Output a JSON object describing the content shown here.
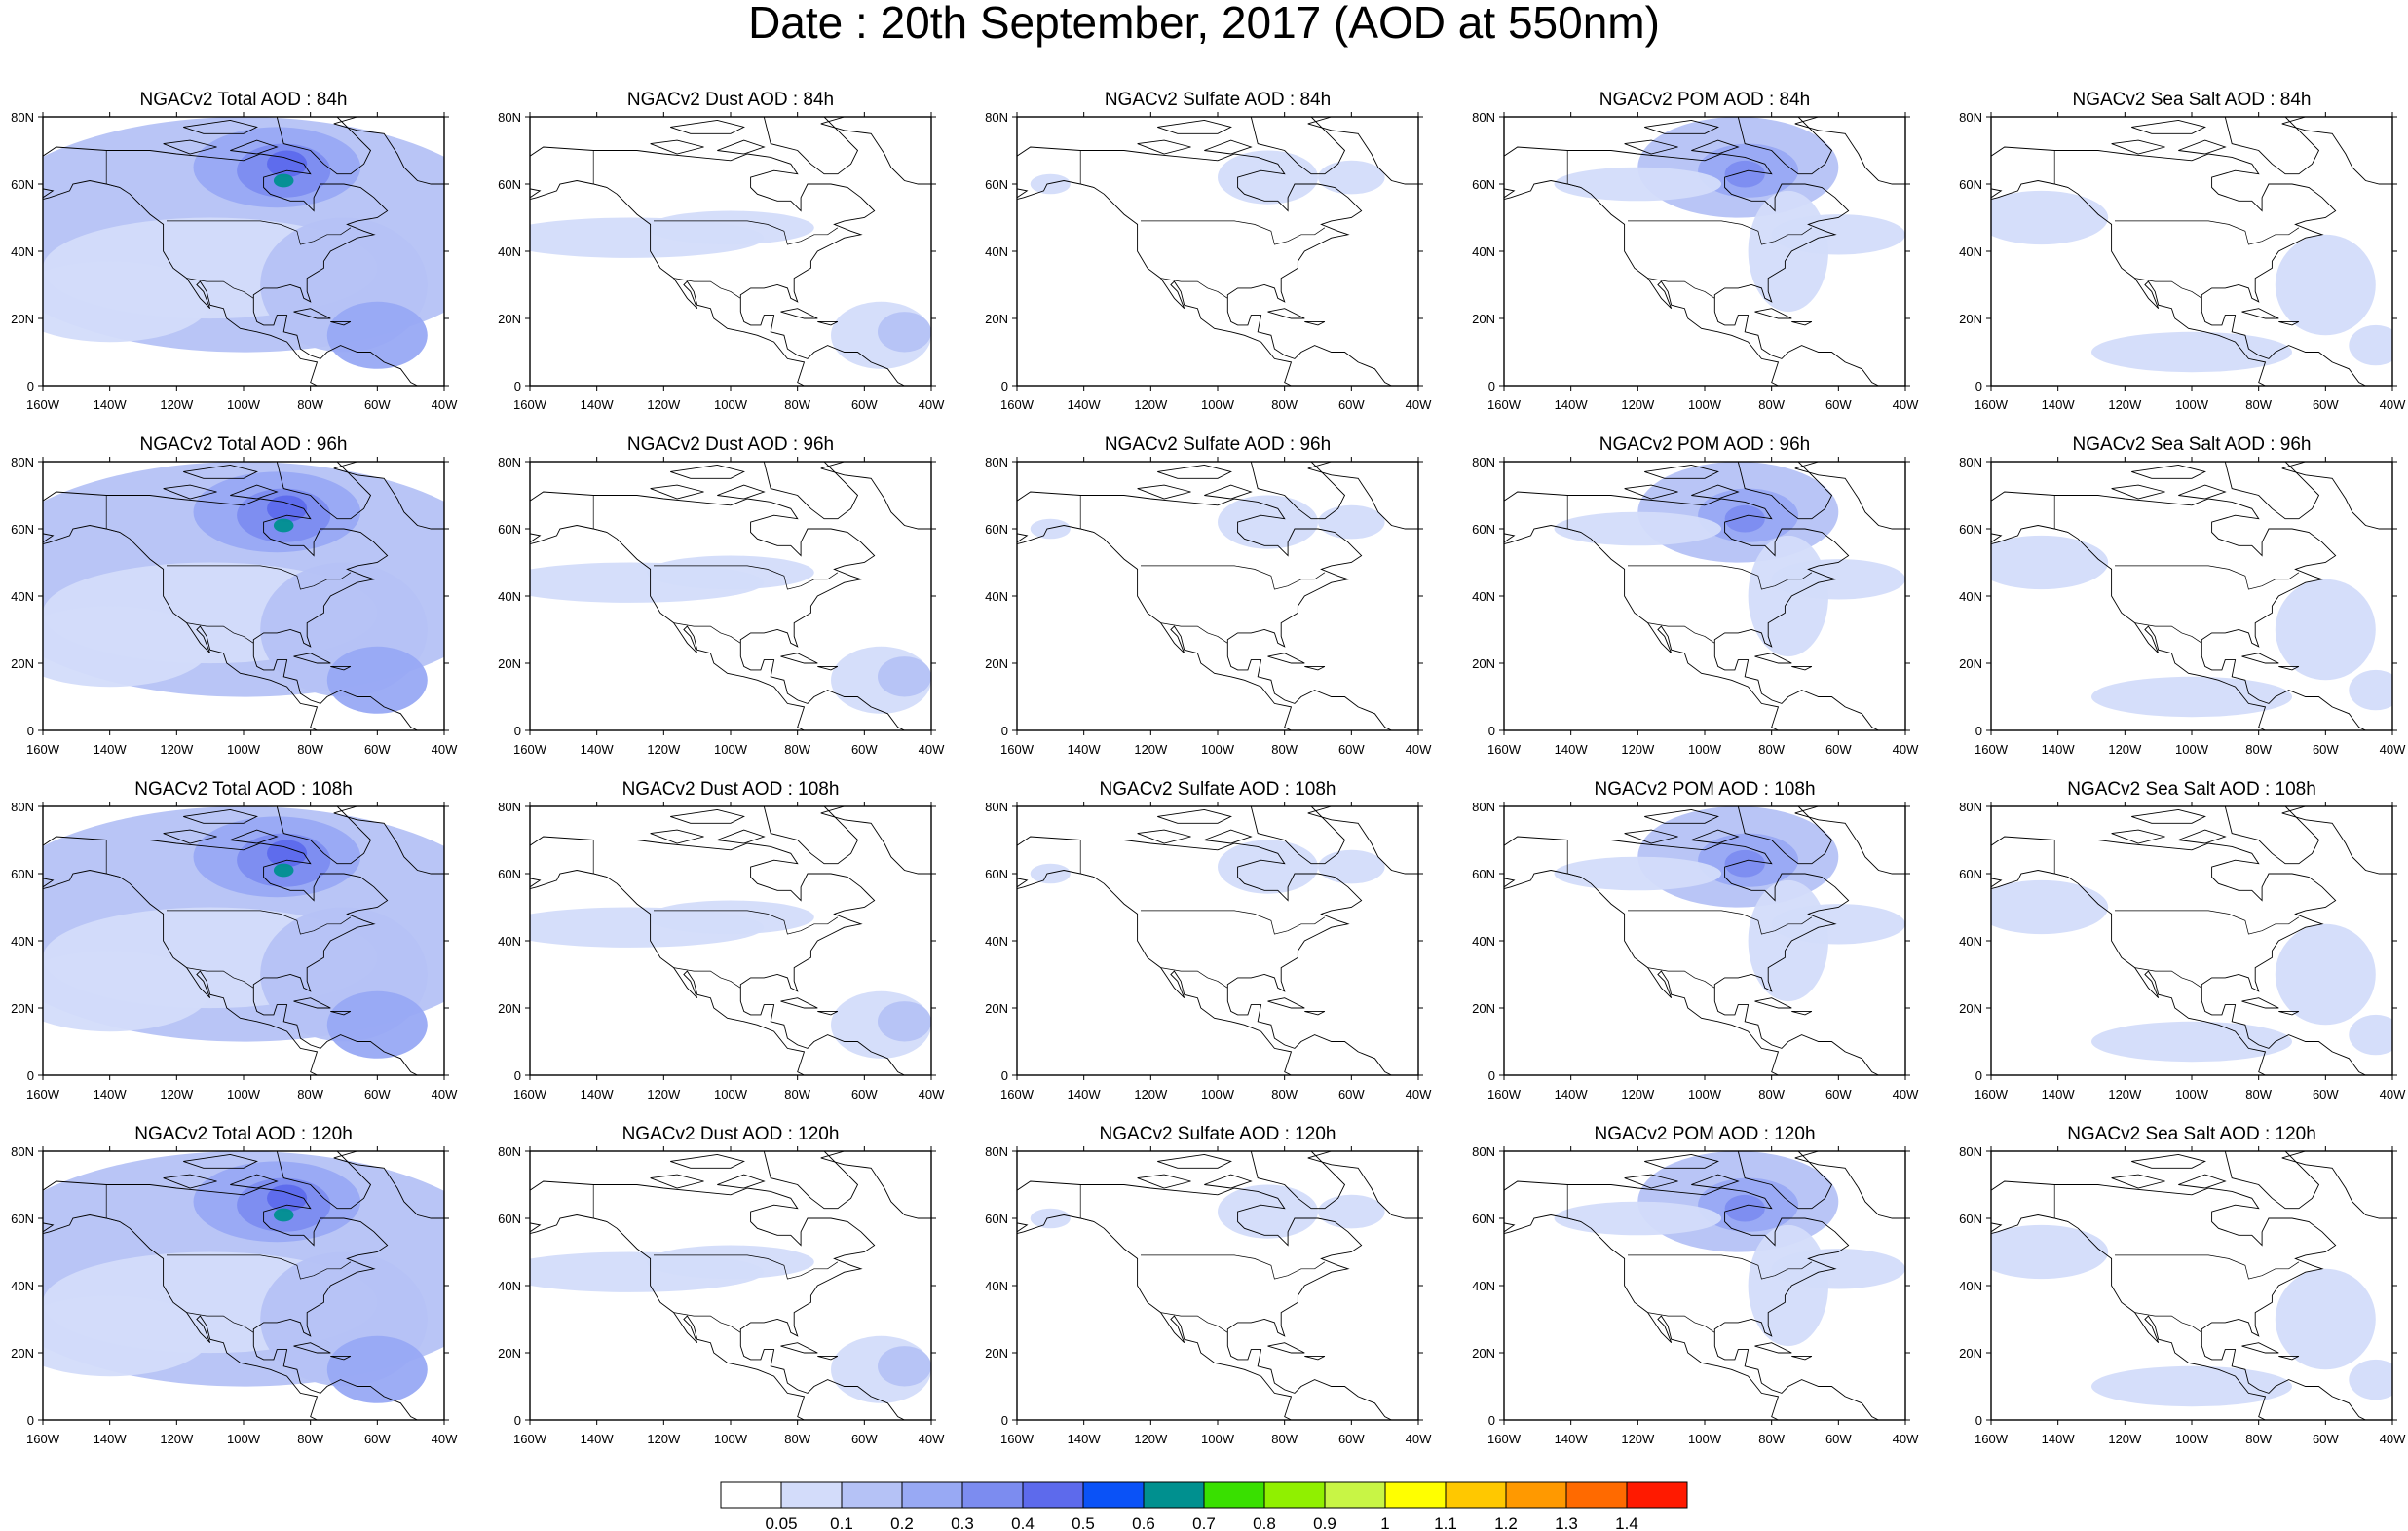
{
  "title": "Date : 20th September, 2017 (AOD at 550nm)",
  "axes": {
    "lon_labels": [
      "160W",
      "140W",
      "120W",
      "100W",
      "80W",
      "60W",
      "40W"
    ],
    "lat_labels": [
      "0",
      "20N",
      "40N",
      "60N",
      "80N"
    ],
    "lon_range": [
      -160,
      -40
    ],
    "lat_range": [
      0,
      80
    ]
  },
  "panels": [
    {
      "title": "NGACv2 Total AOD : 84h",
      "species": "total",
      "hour": 84
    },
    {
      "title": "NGACv2 Dust AOD : 84h",
      "species": "dust",
      "hour": 84
    },
    {
      "title": "NGACv2 Sulfate AOD : 84h",
      "species": "sulfate",
      "hour": 84
    },
    {
      "title": "NGACv2 POM AOD : 84h",
      "species": "pom",
      "hour": 84
    },
    {
      "title": "NGACv2 Sea Salt AOD : 84h",
      "species": "seasalt",
      "hour": 84
    },
    {
      "title": "NGACv2 Total AOD : 96h",
      "species": "total",
      "hour": 96
    },
    {
      "title": "NGACv2 Dust AOD : 96h",
      "species": "dust",
      "hour": 96
    },
    {
      "title": "NGACv2 Sulfate AOD : 96h",
      "species": "sulfate",
      "hour": 96
    },
    {
      "title": "NGACv2 POM AOD : 96h",
      "species": "pom",
      "hour": 96
    },
    {
      "title": "NGACv2 Sea Salt AOD : 96h",
      "species": "seasalt",
      "hour": 96
    },
    {
      "title": "NGACv2 Total AOD : 108h",
      "species": "total",
      "hour": 108
    },
    {
      "title": "NGACv2 Dust AOD : 108h",
      "species": "dust",
      "hour": 108
    },
    {
      "title": "NGACv2 Sulfate AOD : 108h",
      "species": "sulfate",
      "hour": 108
    },
    {
      "title": "NGACv2 POM AOD : 108h",
      "species": "pom",
      "hour": 108
    },
    {
      "title": "NGACv2 Sea Salt AOD : 108h",
      "species": "seasalt",
      "hour": 108
    },
    {
      "title": "NGACv2 Total AOD : 120h",
      "species": "total",
      "hour": 120
    },
    {
      "title": "NGACv2 Dust AOD : 120h",
      "species": "dust",
      "hour": 120
    },
    {
      "title": "NGACv2 Sulfate AOD : 120h",
      "species": "sulfate",
      "hour": 120
    },
    {
      "title": "NGACv2 POM AOD : 120h",
      "species": "pom",
      "hour": 120
    },
    {
      "title": "NGACv2 Sea Salt  AOD : 120h",
      "species": "seasalt",
      "hour": 120
    }
  ],
  "colorbar": {
    "labels": [
      "0.05",
      "0.1",
      "0.2",
      "0.3",
      "0.4",
      "0.5",
      "0.6",
      "0.7",
      "0.8",
      "0.9",
      "1",
      "1.1",
      "1.2",
      "1.3",
      "1.4"
    ],
    "colors": [
      "#ffffff",
      "#d3dcfa",
      "#b5c2f6",
      "#98a9f4",
      "#7c8cf0",
      "#5d6aec",
      "#0a52f7",
      "#00908f",
      "#39e000",
      "#90f000",
      "#c8f545",
      "#ffff00",
      "#ffc800",
      "#ff9900",
      "#ff6a00",
      "#ff1a00"
    ]
  }
}
